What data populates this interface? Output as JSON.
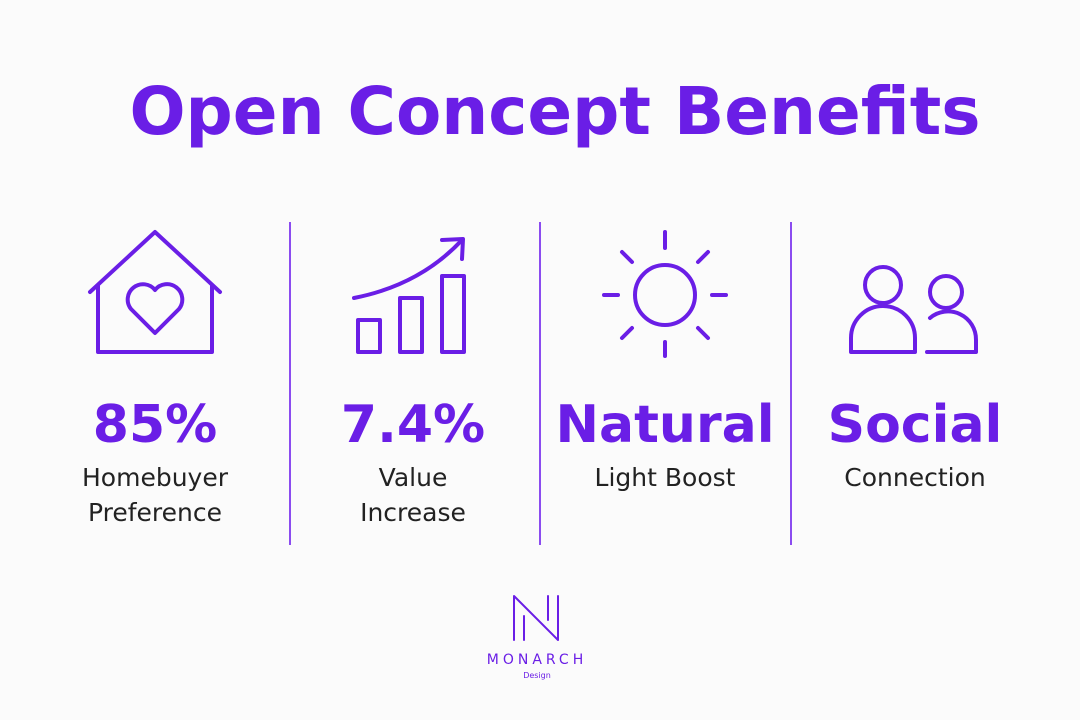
{
  "title": "Open Concept Benefits",
  "items": [
    {
      "stat": "85%",
      "lines": [
        "Homebuyer",
        "Preference"
      ]
    },
    {
      "stat": "7.4%",
      "lines": [
        "Value",
        "Increase"
      ]
    },
    {
      "stat": "Natural",
      "lines": [
        "Light Boost"
      ]
    },
    {
      "stat": "Social",
      "lines": [
        "Connection"
      ]
    }
  ],
  "logo": {
    "name": "MONARCH",
    "sub": "Design"
  }
}
